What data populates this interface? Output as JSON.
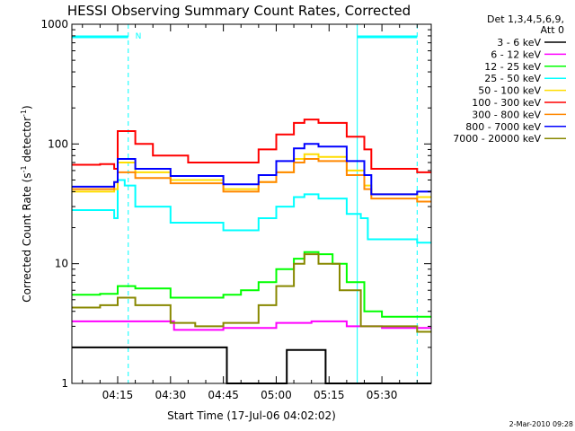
{
  "chart_data": {
    "type": "line",
    "title": "HESSI Observing Summary Count Rates, Corrected",
    "xlabel": "Start Time (17-Jul-06 04:02:02)",
    "ylabel_main": "Corrected Count Rate (s",
    "ylabel_sup1": "-1",
    "ylabel_mid": " detector",
    "ylabel_sup2": "-1",
    "ylabel_end": ")",
    "y_scale": "log",
    "ylim": [
      1,
      1000
    ],
    "xlim": [
      "04:02",
      "05:44"
    ],
    "x_ticks": [
      "04:15",
      "04:30",
      "04:45",
      "05:00",
      "05:15",
      "05:30"
    ],
    "y_ticks": [
      "1",
      "10",
      "100",
      "1000"
    ],
    "legend_header": [
      "Det 1,3,4,5,6,9,",
      "Att 0"
    ],
    "legend_position": "top-right",
    "footer_timestamp": "2-Mar-2010 09:28",
    "annotation": {
      "text": "N",
      "x": "04:19"
    },
    "status_bar": {
      "color": "#00ffff",
      "segments": [
        [
          "04:02",
          "04:18"
        ],
        [
          "05:23",
          "05:40"
        ]
      ]
    },
    "markers": {
      "solid": [
        "04:02",
        "05:23"
      ],
      "dashed": [
        "04:18",
        "05:40"
      ],
      "color": "#00ffff"
    },
    "series": [
      {
        "name": "3 - 6 keV",
        "color": "#000000",
        "points": [
          [
            "04:02",
            2
          ],
          [
            "04:13",
            2
          ],
          [
            "04:46",
            1
          ],
          [
            "05:02",
            1
          ],
          [
            "05:03",
            1.9
          ],
          [
            "05:13",
            1.9
          ],
          [
            "05:14",
            1
          ]
        ]
      },
      {
        "name": "6 - 12 keV",
        "color": "#ff00ff",
        "points": [
          [
            "04:02",
            3.3
          ],
          [
            "04:30",
            3.3
          ],
          [
            "04:31",
            2.8
          ],
          [
            "04:45",
            2.9
          ],
          [
            "05:00",
            3.2
          ],
          [
            "05:10",
            3.3
          ],
          [
            "05:20",
            3.0
          ],
          [
            "05:30",
            2.9
          ],
          [
            "05:40",
            2.9
          ]
        ]
      },
      {
        "name": "12 - 25 keV",
        "color": "#00ff00",
        "points": [
          [
            "04:02",
            5.5
          ],
          [
            "04:10",
            5.6
          ],
          [
            "04:15",
            6.5
          ],
          [
            "04:20",
            6.2
          ],
          [
            "04:30",
            5.2
          ],
          [
            "04:45",
            5.5
          ],
          [
            "04:50",
            6
          ],
          [
            "04:55",
            7
          ],
          [
            "05:00",
            9
          ],
          [
            "05:05",
            11
          ],
          [
            "05:08",
            12.5
          ],
          [
            "05:12",
            12
          ],
          [
            "05:16",
            10
          ],
          [
            "05:20",
            7
          ],
          [
            "05:25",
            4
          ],
          [
            "05:30",
            3.6
          ],
          [
            "05:40",
            3.6
          ]
        ]
      },
      {
        "name": "25 - 50 keV",
        "color": "#00ffff",
        "points": [
          [
            "04:02",
            28
          ],
          [
            "04:14",
            24
          ],
          [
            "04:15",
            50
          ],
          [
            "04:17",
            45
          ],
          [
            "04:20",
            30
          ],
          [
            "04:30",
            22
          ],
          [
            "04:45",
            19
          ],
          [
            "04:55",
            24
          ],
          [
            "05:00",
            30
          ],
          [
            "05:05",
            36
          ],
          [
            "05:08",
            38
          ],
          [
            "05:12",
            35
          ],
          [
            "05:20",
            26
          ],
          [
            "05:24",
            24
          ],
          [
            "05:26",
            16
          ],
          [
            "05:40",
            15
          ]
        ]
      },
      {
        "name": "50 - 100 keV",
        "color": "#ffdd00",
        "points": [
          [
            "04:02",
            40
          ],
          [
            "04:14",
            42
          ],
          [
            "04:15",
            70
          ],
          [
            "04:20",
            58
          ],
          [
            "04:30",
            50
          ],
          [
            "04:45",
            42
          ],
          [
            "04:55",
            48
          ],
          [
            "05:00",
            58
          ],
          [
            "05:05",
            75
          ],
          [
            "05:08",
            82
          ],
          [
            "05:12",
            78
          ],
          [
            "05:20",
            60
          ],
          [
            "05:25",
            45
          ],
          [
            "05:27",
            38
          ],
          [
            "05:40",
            36
          ]
        ]
      },
      {
        "name": "100 - 300 keV",
        "color": "#ff0000",
        "points": [
          [
            "04:02",
            67
          ],
          [
            "04:10",
            68
          ],
          [
            "04:14",
            62
          ],
          [
            "04:15",
            128
          ],
          [
            "04:20",
            100
          ],
          [
            "04:25",
            80
          ],
          [
            "04:35",
            70
          ],
          [
            "04:45",
            70
          ],
          [
            "04:55",
            90
          ],
          [
            "05:00",
            120
          ],
          [
            "05:05",
            150
          ],
          [
            "05:08",
            160
          ],
          [
            "05:12",
            150
          ],
          [
            "05:20",
            115
          ],
          [
            "05:25",
            90
          ],
          [
            "05:27",
            62
          ],
          [
            "05:40",
            58
          ]
        ]
      },
      {
        "name": "300 - 800 keV",
        "color": "#ff8800",
        "points": [
          [
            "04:02",
            42
          ],
          [
            "04:14",
            48
          ],
          [
            "04:15",
            58
          ],
          [
            "04:20",
            52
          ],
          [
            "04:30",
            47
          ],
          [
            "04:45",
            40
          ],
          [
            "04:55",
            48
          ],
          [
            "05:00",
            58
          ],
          [
            "05:05",
            70
          ],
          [
            "05:08",
            75
          ],
          [
            "05:12",
            72
          ],
          [
            "05:20",
            55
          ],
          [
            "05:25",
            42
          ],
          [
            "05:27",
            35
          ],
          [
            "05:40",
            33
          ]
        ]
      },
      {
        "name": "800 - 7000 keV",
        "color": "#0000ff",
        "points": [
          [
            "04:02",
            44
          ],
          [
            "04:14",
            48
          ],
          [
            "04:15",
            75
          ],
          [
            "04:20",
            62
          ],
          [
            "04:30",
            54
          ],
          [
            "04:45",
            46
          ],
          [
            "04:55",
            55
          ],
          [
            "05:00",
            72
          ],
          [
            "05:05",
            92
          ],
          [
            "05:08",
            100
          ],
          [
            "05:12",
            95
          ],
          [
            "05:20",
            72
          ],
          [
            "05:25",
            55
          ],
          [
            "05:27",
            38
          ],
          [
            "05:40",
            40
          ]
        ]
      },
      {
        "name": "7000 - 20000 keV",
        "color": "#888800",
        "points": [
          [
            "04:02",
            4.3
          ],
          [
            "04:10",
            4.5
          ],
          [
            "04:15",
            5.2
          ],
          [
            "04:20",
            4.5
          ],
          [
            "04:30",
            3.2
          ],
          [
            "04:37",
            3.0
          ],
          [
            "04:45",
            3.2
          ],
          [
            "04:55",
            4.5
          ],
          [
            "05:00",
            6.5
          ],
          [
            "05:05",
            10
          ],
          [
            "05:08",
            12
          ],
          [
            "05:12",
            10
          ],
          [
            "05:18",
            6
          ],
          [
            "05:24",
            3.0
          ],
          [
            "05:40",
            2.7
          ]
        ]
      }
    ]
  }
}
